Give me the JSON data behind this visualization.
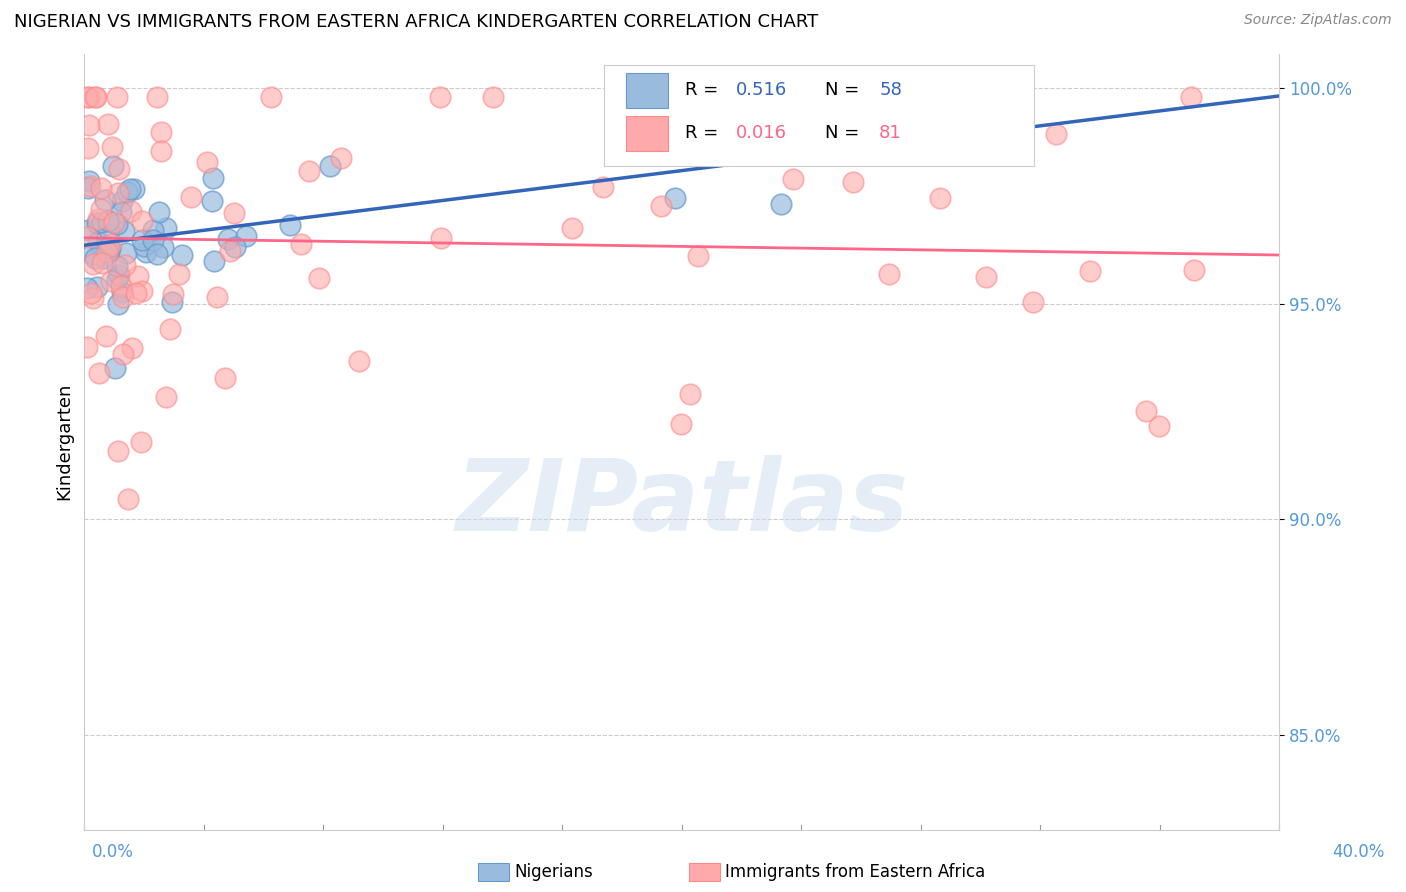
{
  "title": "NIGERIAN VS IMMIGRANTS FROM EASTERN AFRICA KINDERGARTEN CORRELATION CHART",
  "source": "Source: ZipAtlas.com",
  "ylabel": "Kindergarten",
  "xmin": 0.0,
  "xmax": 0.4,
  "ymin": 0.828,
  "ymax": 1.008,
  "yticks": [
    0.85,
    0.9,
    0.95,
    1.0
  ],
  "ytick_labels": [
    "85.0%",
    "90.0%",
    "95.0%",
    "100.0%"
  ],
  "legend_r_blue": "0.516",
  "legend_n_blue": "58",
  "legend_r_pink": "0.016",
  "legend_n_pink": "81",
  "blue_color": "#99BBDD",
  "pink_color": "#FFAAAA",
  "blue_edge_color": "#6699CC",
  "pink_edge_color": "#FF8888",
  "blue_line_color": "#3366BB",
  "pink_line_color": "#FF6688",
  "watermark": "ZIPatlas",
  "watermark_color": "#CCDDEE",
  "grid_color": "#CCCCCC",
  "axis_color": "#CCCCCC",
  "tick_label_color": "#5599DD",
  "title_fontsize": 13,
  "source_fontsize": 10,
  "ytick_fontsize": 12,
  "legend_fontsize": 13
}
